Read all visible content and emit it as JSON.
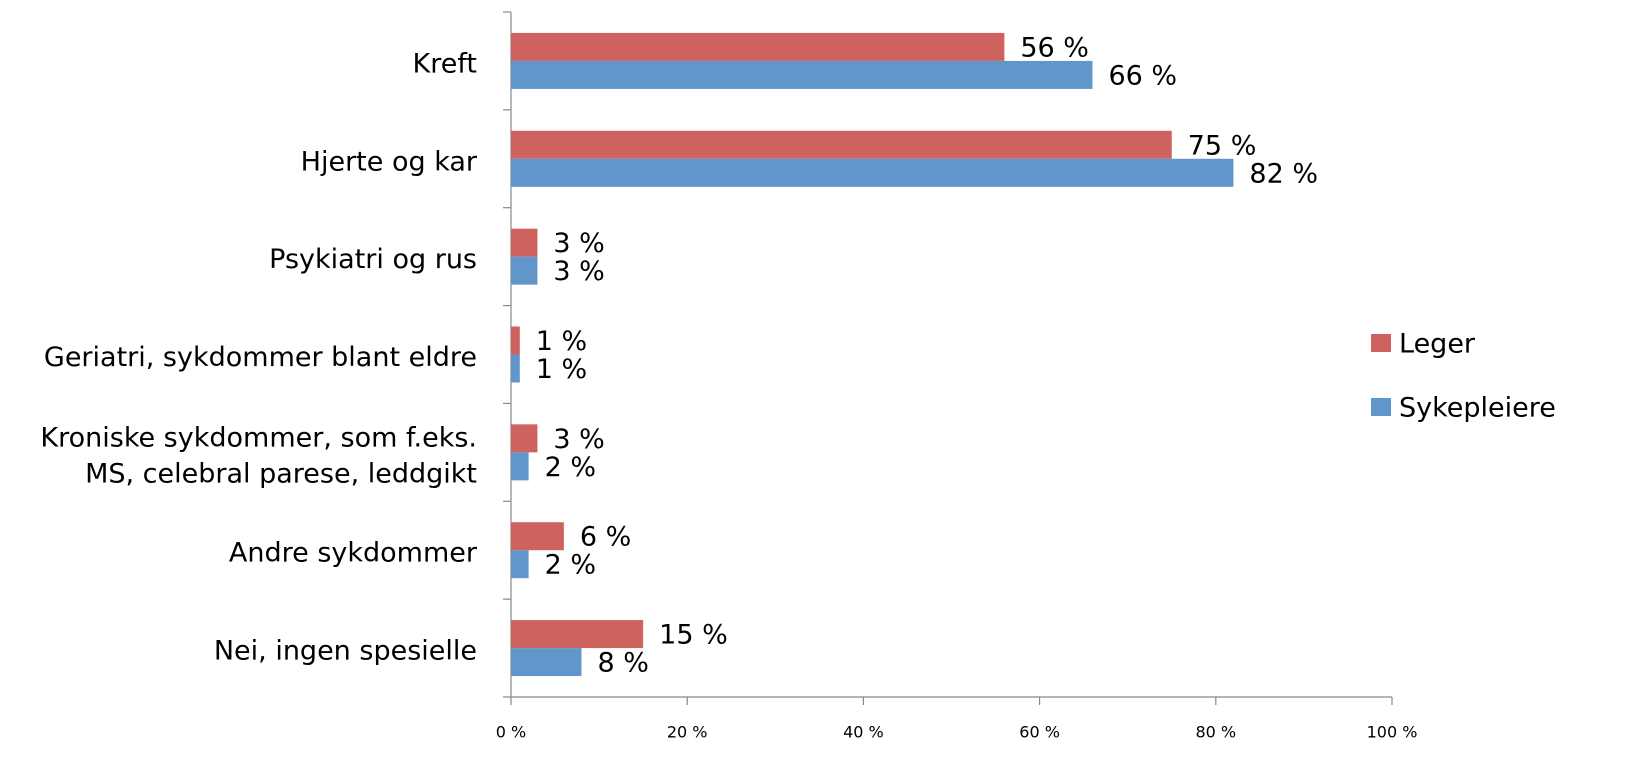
{
  "chart_data": {
    "type": "hbar",
    "categories": [
      "Kreft",
      "Hjerte og kar",
      "Psykiatri og rus",
      "Geriatri, sykdommer blant eldre",
      "Kroniske sykdommer, som f.eks.\nMS, celebral parese, leddgikt",
      "Andre sykdommer",
      "Nei, ingen spesielle"
    ],
    "series": [
      {
        "name": "Leger",
        "color": "#cd625e",
        "values": [
          56,
          75,
          3,
          1,
          3,
          6,
          15
        ],
        "value_labels": [
          "56 %",
          "75 %",
          "3 %",
          "1 %",
          "3 %",
          "6 %",
          "15 %"
        ]
      },
      {
        "name": "Sykepleiere",
        "color": "#6096ca",
        "values": [
          66,
          82,
          3,
          1,
          2,
          2,
          8
        ],
        "value_labels": [
          "66 %",
          "82 %",
          "3 %",
          "1 %",
          "2 %",
          "2 %",
          "8 %"
        ]
      }
    ],
    "xlim": [
      0,
      100
    ],
    "xticks": [
      {
        "value": 0,
        "label": "0 %"
      },
      {
        "value": 20,
        "label": "20 %"
      },
      {
        "value": 40,
        "label": "40 %"
      },
      {
        "value": 60,
        "label": "60 %"
      },
      {
        "value": 80,
        "label": "80 %"
      },
      {
        "value": 100,
        "label": "100 %"
      }
    ],
    "grid": false,
    "legend": "right"
  }
}
